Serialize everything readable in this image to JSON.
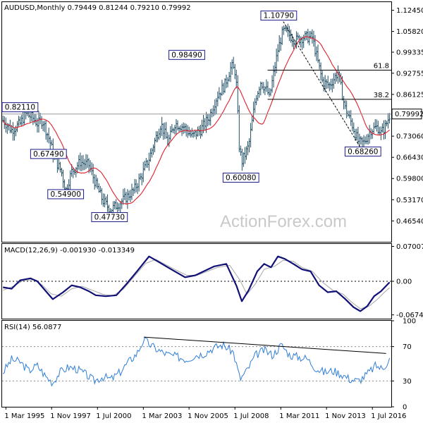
{
  "chart_data": [
    {
      "type": "ohlc",
      "title": "AUDUSD,Monthly  0.79449 0.81244 0.79210 0.79992",
      "symbol": "AUDUSD",
      "timeframe": "Monthly",
      "last_bar": {
        "open": 0.79449,
        "high": 0.81244,
        "low": 0.7921,
        "close": 0.79992
      },
      "current_price_label": "0.79992",
      "ylim": [
        0.4,
        1.15
      ],
      "y_ticks": [
        "1.12450",
        "1.05820",
        "0.99335",
        "0.92755",
        "0.86125",
        "0.79992",
        "0.73060",
        "0.66430",
        "0.59800",
        "0.53170",
        "0.46540"
      ],
      "x_ticks": [
        "1 Mar 1995",
        "1 Nov 1997",
        "1 Jul 2000",
        "1 Mar 2003",
        "1 Nov 2005",
        "1 Jul 2008",
        "1 Mar 2011",
        "1 Nov 2013",
        "1 Jul 2016"
      ],
      "x_tick_values": [
        1995.17,
        1997.83,
        2000.5,
        2003.17,
        2005.83,
        2008.5,
        2011.17,
        2013.83,
        2016.5
      ],
      "xlim": [
        1994.95,
        2017.6
      ],
      "bar_color": "#1f4e66",
      "ma_color": "#e0202c",
      "trend_color": "#000000",
      "path": [
        [
          1995.0,
          0.78
        ],
        [
          1995.5,
          0.75
        ],
        [
          1996.0,
          0.77
        ],
        [
          1996.3,
          0.8
        ],
        [
          1996.7,
          0.79
        ],
        [
          1997.0,
          0.77
        ],
        [
          1997.3,
          0.78
        ],
        [
          1997.7,
          0.72
        ],
        [
          1998.0,
          0.66
        ],
        [
          1998.4,
          0.62
        ],
        [
          1998.65,
          0.56
        ],
        [
          1999.0,
          0.62
        ],
        [
          1999.5,
          0.65
        ],
        [
          2000.0,
          0.64
        ],
        [
          2000.4,
          0.58
        ],
        [
          2000.8,
          0.53
        ],
        [
          2001.25,
          0.5
        ],
        [
          2001.75,
          0.52
        ],
        [
          2002.2,
          0.54
        ],
        [
          2002.6,
          0.56
        ],
        [
          2003.0,
          0.6
        ],
        [
          2003.5,
          0.66
        ],
        [
          2003.8,
          0.71
        ],
        [
          2004.2,
          0.77
        ],
        [
          2004.6,
          0.71
        ],
        [
          2005.0,
          0.77
        ],
        [
          2005.5,
          0.76
        ],
        [
          2006.0,
          0.73
        ],
        [
          2006.5,
          0.75
        ],
        [
          2007.0,
          0.79
        ],
        [
          2007.5,
          0.86
        ],
        [
          2007.9,
          0.89
        ],
        [
          2008.3,
          0.95
        ],
        [
          2008.55,
          0.93
        ],
        [
          2008.75,
          0.7
        ],
        [
          2008.9,
          0.65
        ],
        [
          2009.3,
          0.7
        ],
        [
          2009.7,
          0.85
        ],
        [
          2010.0,
          0.9
        ],
        [
          2010.4,
          0.87
        ],
        [
          2010.5,
          0.85
        ],
        [
          2011.0,
          1.0
        ],
        [
          2011.3,
          1.06
        ],
        [
          2011.6,
          1.05
        ],
        [
          2012.0,
          1.03
        ],
        [
          2012.5,
          1.04
        ],
        [
          2013.0,
          1.04
        ],
        [
          2013.3,
          0.97
        ],
        [
          2013.6,
          0.9
        ],
        [
          2014.0,
          0.89
        ],
        [
          2014.5,
          0.93
        ],
        [
          2014.9,
          0.82
        ],
        [
          2015.3,
          0.77
        ],
        [
          2015.7,
          0.71
        ],
        [
          2016.0,
          0.71
        ],
        [
          2016.4,
          0.75
        ],
        [
          2016.8,
          0.76
        ],
        [
          2017.0,
          0.74
        ],
        [
          2017.25,
          0.76
        ],
        [
          2017.5,
          0.795
        ]
      ],
      "annotations": [
        {
          "label": "0.82110",
          "x": 1995.05,
          "y": 0.8211,
          "style": "edge"
        },
        {
          "label": "0.67490",
          "x": 1997.65,
          "y": 0.6749
        },
        {
          "label": "0.54900",
          "x": 1998.65,
          "y": 0.549
        },
        {
          "label": "0.47730",
          "x": 2001.2,
          "y": 0.4773
        },
        {
          "label": "0.98490",
          "x": 2005.7,
          "y": 0.9849
        },
        {
          "label": "0.60080",
          "x": 2008.85,
          "y": 0.6008
        },
        {
          "label": "1.10790",
          "x": 2011.05,
          "y": 1.1079
        },
        {
          "label": "0.68260",
          "x": 2015.95,
          "y": 0.6826
        }
      ],
      "fib_levels": [
        {
          "label": "61.8",
          "value": 0.937
        },
        {
          "label": "38.2",
          "value": 0.846
        }
      ],
      "trendline": {
        "from": [
          2011.1,
          1.1079
        ],
        "to": [
          2015.95,
          0.6826
        ]
      },
      "watermark": "ActionForex.com"
    },
    {
      "type": "line",
      "title": "MACD(12,26,9) -0.001930 -0.013349",
      "ylim": [
        -0.075,
        0.075
      ],
      "y_ticks": [
        "0.070071",
        "0.00",
        "-0.067423"
      ],
      "zero_line": true,
      "series": [
        {
          "color": "#111177",
          "width": 2.2,
          "points": [
            [
              1995.0,
              -0.012
            ],
            [
              1995.5,
              -0.015
            ],
            [
              1996.0,
              0.002
            ],
            [
              1996.6,
              0.006
            ],
            [
              1997.0,
              0.0
            ],
            [
              1997.5,
              -0.02
            ],
            [
              1997.9,
              -0.036
            ],
            [
              1998.5,
              -0.022
            ],
            [
              1999.0,
              -0.008
            ],
            [
              1999.5,
              -0.012
            ],
            [
              2000.0,
              -0.02
            ],
            [
              2000.4,
              -0.028
            ],
            [
              2001.0,
              -0.03
            ],
            [
              2001.6,
              -0.028
            ],
            [
              2002.2,
              -0.005
            ],
            [
              2002.8,
              0.02
            ],
            [
              2003.5,
              0.05
            ],
            [
              2004.0,
              0.04
            ],
            [
              2004.5,
              0.03
            ],
            [
              2005.0,
              0.02
            ],
            [
              2005.6,
              0.008
            ],
            [
              2006.2,
              0.012
            ],
            [
              2006.8,
              0.022
            ],
            [
              2007.3,
              0.03
            ],
            [
              2008.0,
              0.035
            ],
            [
              2008.6,
              -0.01
            ],
            [
              2008.9,
              -0.04
            ],
            [
              2009.3,
              -0.018
            ],
            [
              2009.8,
              0.02
            ],
            [
              2010.2,
              0.035
            ],
            [
              2010.6,
              0.028
            ],
            [
              2011.0,
              0.05
            ],
            [
              2011.4,
              0.045
            ],
            [
              2011.9,
              0.035
            ],
            [
              2012.4,
              0.024
            ],
            [
              2012.9,
              0.02
            ],
            [
              2013.4,
              -0.008
            ],
            [
              2013.9,
              -0.022
            ],
            [
              2014.4,
              -0.02
            ],
            [
              2014.9,
              -0.035
            ],
            [
              2015.4,
              -0.052
            ],
            [
              2015.8,
              -0.06
            ],
            [
              2016.2,
              -0.05
            ],
            [
              2016.6,
              -0.03
            ],
            [
              2017.0,
              -0.02
            ],
            [
              2017.5,
              -0.002
            ]
          ]
        },
        {
          "color": "#a8a8a8",
          "width": 1.0,
          "points": [
            [
              1995.0,
              -0.018
            ],
            [
              1995.6,
              -0.01
            ],
            [
              1996.2,
              0.002
            ],
            [
              1996.8,
              0.003
            ],
            [
              1997.3,
              -0.008
            ],
            [
              1997.8,
              -0.025
            ],
            [
              1998.4,
              -0.03
            ],
            [
              1999.0,
              -0.015
            ],
            [
              1999.6,
              -0.01
            ],
            [
              2000.2,
              -0.018
            ],
            [
              2000.8,
              -0.026
            ],
            [
              2001.4,
              -0.029
            ],
            [
              2002.0,
              -0.016
            ],
            [
              2002.6,
              0.008
            ],
            [
              2003.3,
              0.036
            ],
            [
              2003.9,
              0.044
            ],
            [
              2004.5,
              0.033
            ],
            [
              2005.1,
              0.022
            ],
            [
              2005.7,
              0.012
            ],
            [
              2006.3,
              0.012
            ],
            [
              2006.9,
              0.02
            ],
            [
              2007.5,
              0.028
            ],
            [
              2008.2,
              0.032
            ],
            [
              2008.8,
              0.002
            ],
            [
              2009.2,
              -0.026
            ],
            [
              2009.7,
              -0.005
            ],
            [
              2010.2,
              0.024
            ],
            [
              2010.8,
              0.03
            ],
            [
              2011.3,
              0.042
            ],
            [
              2011.9,
              0.04
            ],
            [
              2012.4,
              0.028
            ],
            [
              2013.0,
              0.02
            ],
            [
              2013.6,
              -0.002
            ],
            [
              2014.2,
              -0.018
            ],
            [
              2014.8,
              -0.026
            ],
            [
              2015.3,
              -0.042
            ],
            [
              2015.8,
              -0.055
            ],
            [
              2016.3,
              -0.05
            ],
            [
              2016.8,
              -0.036
            ],
            [
              2017.2,
              -0.022
            ],
            [
              2017.5,
              -0.013
            ]
          ]
        }
      ]
    },
    {
      "type": "line",
      "title": "RSI(14) 56.0877",
      "ylim": [
        0,
        100
      ],
      "y_ticks": [
        "100",
        "70",
        "30",
        "0"
      ],
      "y_tick_values": [
        100,
        70,
        30,
        0
      ],
      "levels": [
        70,
        30
      ],
      "series": [
        {
          "color": "#2f7ed8",
          "width": 1.0,
          "points": [
            [
              1995.0,
              40
            ],
            [
              1995.5,
              55
            ],
            [
              1996.0,
              52
            ],
            [
              1996.5,
              42
            ],
            [
              1997.0,
              48
            ],
            [
              1997.5,
              35
            ],
            [
              1997.9,
              28
            ],
            [
              1998.3,
              40
            ],
            [
              1998.8,
              46
            ],
            [
              1999.3,
              44
            ],
            [
              1999.8,
              38
            ],
            [
              2000.3,
              30
            ],
            [
              2000.8,
              35
            ],
            [
              2001.3,
              32
            ],
            [
              2001.8,
              40
            ],
            [
              2002.3,
              52
            ],
            [
              2002.8,
              62
            ],
            [
              2003.2,
              78
            ],
            [
              2003.7,
              70
            ],
            [
              2004.2,
              64
            ],
            [
              2004.7,
              60
            ],
            [
              2005.2,
              58
            ],
            [
              2005.7,
              55
            ],
            [
              2006.2,
              60
            ],
            [
              2006.7,
              62
            ],
            [
              2007.2,
              68
            ],
            [
              2007.8,
              72
            ],
            [
              2008.4,
              64
            ],
            [
              2008.8,
              32
            ],
            [
              2009.2,
              42
            ],
            [
              2009.7,
              60
            ],
            [
              2010.2,
              66
            ],
            [
              2010.7,
              60
            ],
            [
              2011.2,
              72
            ],
            [
              2011.7,
              60
            ],
            [
              2012.2,
              58
            ],
            [
              2012.7,
              56
            ],
            [
              2013.2,
              45
            ],
            [
              2013.7,
              40
            ],
            [
              2014.2,
              42
            ],
            [
              2014.7,
              38
            ],
            [
              2015.2,
              32
            ],
            [
              2015.7,
              30
            ],
            [
              2016.2,
              38
            ],
            [
              2016.7,
              48
            ],
            [
              2017.1,
              44
            ],
            [
              2017.5,
              56
            ]
          ]
        }
      ],
      "trendline": {
        "from": [
          2003.2,
          81
        ],
        "to": [
          2017.3,
          62
        ]
      }
    }
  ]
}
